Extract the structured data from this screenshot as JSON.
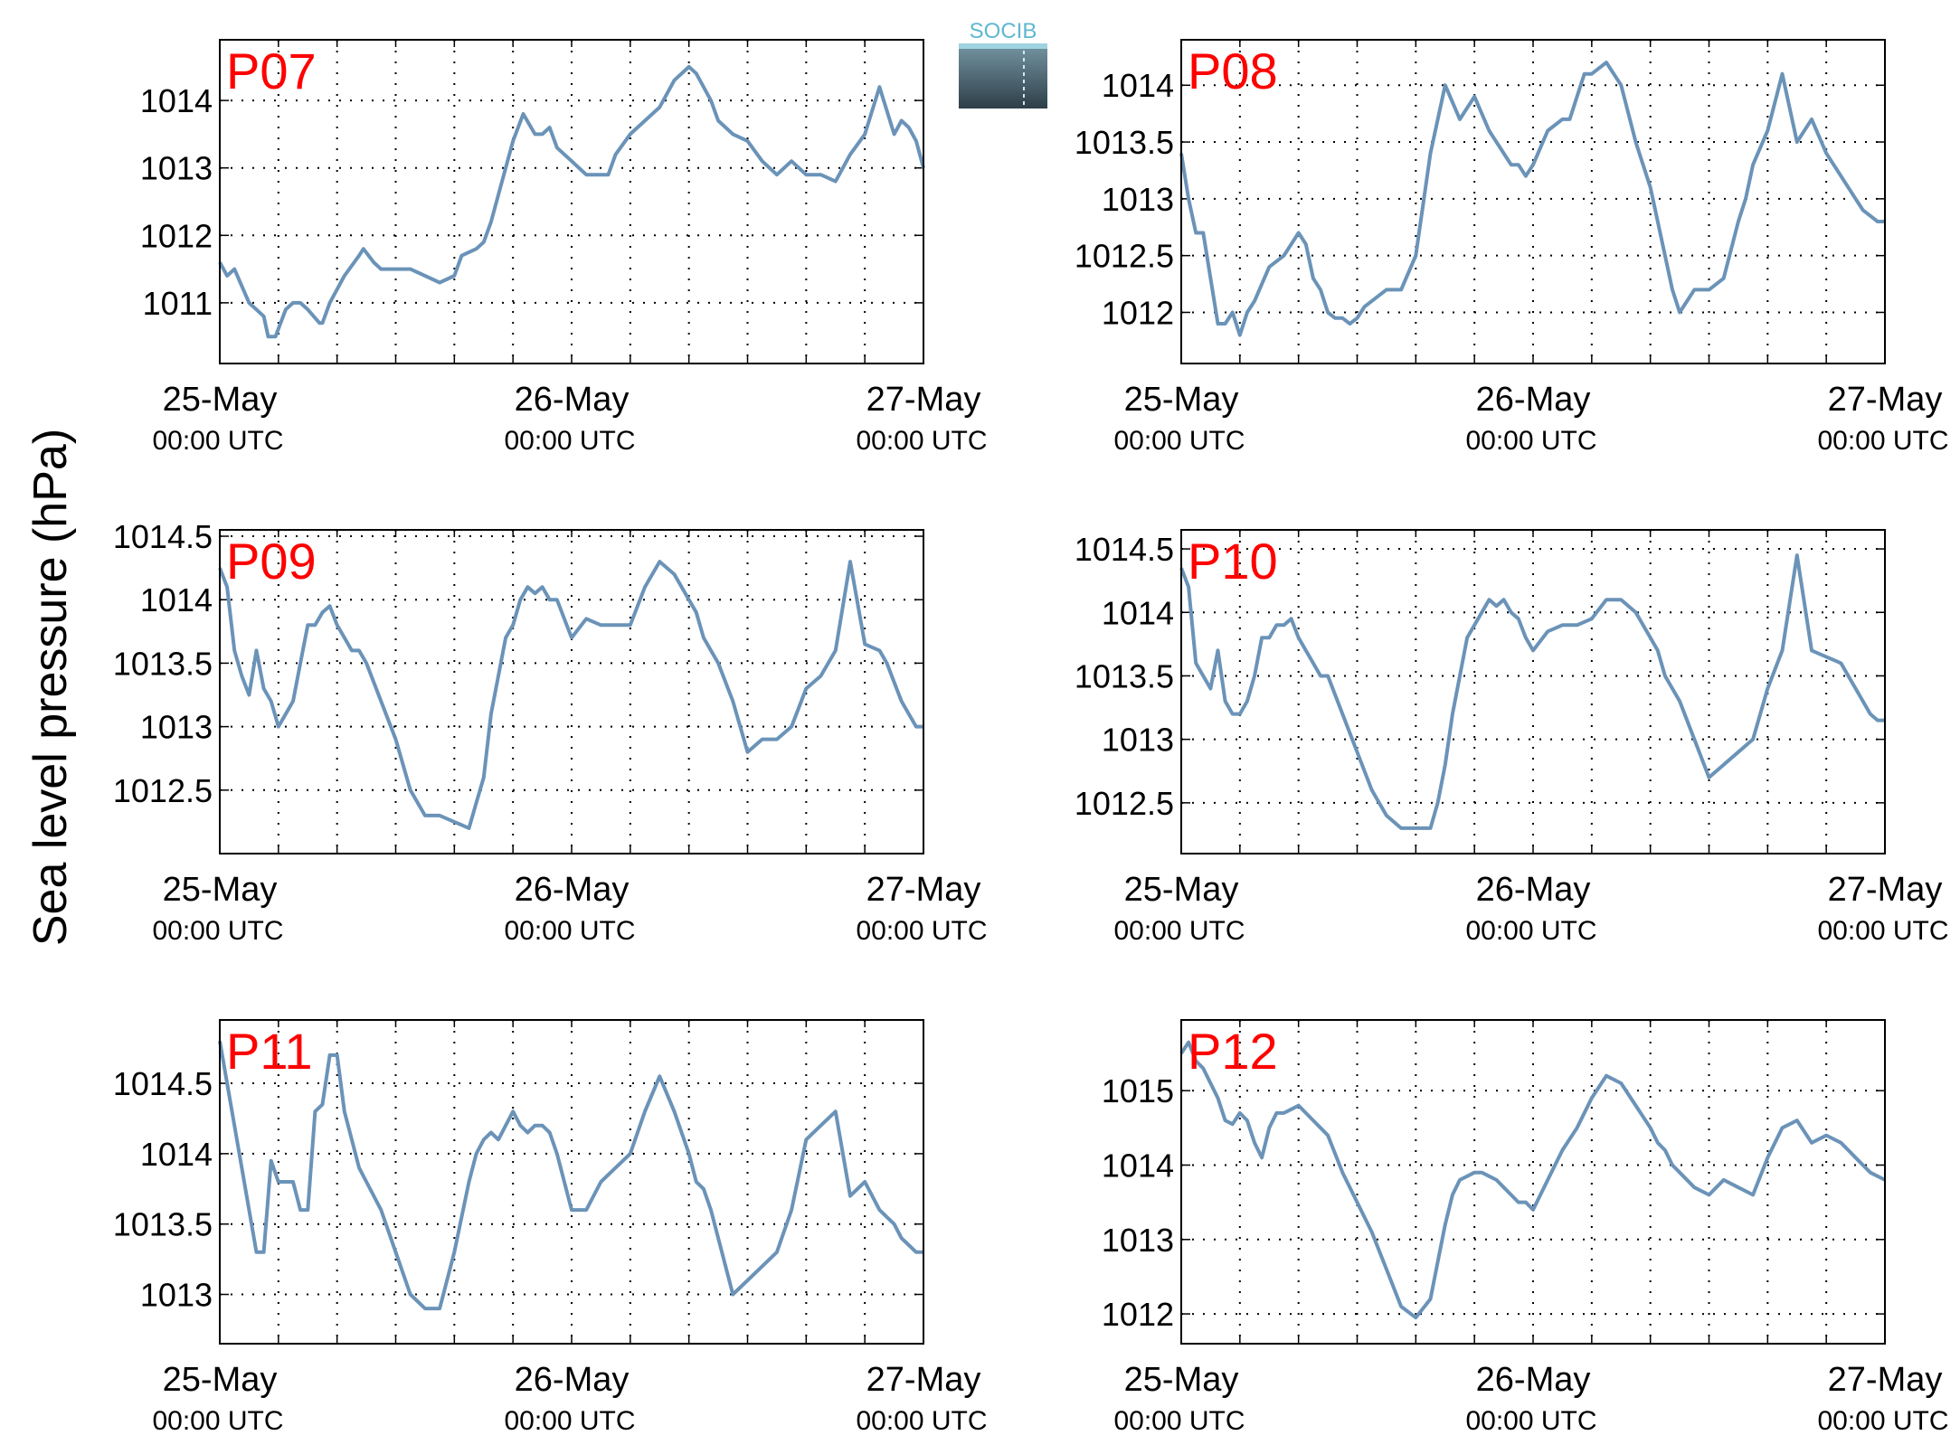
{
  "ylabel": "Sea level pressure (hPa)",
  "logo_text": "SOCIB",
  "colors": {
    "line": "#6b93b8",
    "label": "#ff0000",
    "axis": "#000000",
    "grid": "#000000"
  },
  "chart_data": [
    {
      "type": "line",
      "title": "P07",
      "ylim": [
        1010.1,
        1014.9
      ],
      "xlim": [
        0,
        48
      ],
      "yticks": [
        1011,
        1012,
        1013,
        1014
      ],
      "ytick_labels": [
        "1011",
        "1012",
        "1013",
        "1014"
      ],
      "xticks": [
        0,
        24,
        48
      ],
      "xtick_labels": [
        "25-May",
        "26-May",
        "27-May"
      ],
      "xtick_sublabel": "00:00 UTC",
      "grid": true,
      "series": [
        {
          "x": [
            0,
            0.5,
            1,
            2,
            3,
            3.3,
            3.8,
            4.5,
            5,
            5.5,
            6,
            6.8,
            7,
            7.5,
            8.5,
            9.5,
            9.8,
            10.5,
            11,
            12,
            13,
            14,
            15,
            16,
            16.5,
            17.5,
            18,
            18.5,
            19,
            19.5,
            20,
            20.7,
            21.5,
            22,
            22.5,
            23,
            24,
            25,
            26,
            26.5,
            27,
            28,
            29,
            30,
            31,
            32,
            32.5,
            33,
            33.5,
            34,
            35,
            36,
            37,
            37.5,
            38,
            38.5,
            39,
            39.5,
            40,
            41,
            42,
            43,
            44,
            45,
            46,
            46.5,
            47,
            47.5,
            48
          ],
          "y": [
            1011.6,
            1011.4,
            1011.5,
            1011.0,
            1010.8,
            1010.5,
            1010.5,
            1010.9,
            1011.0,
            1011.0,
            1010.9,
            1010.7,
            1010.7,
            1011.0,
            1011.4,
            1011.7,
            1011.8,
            1011.6,
            1011.5,
            1011.5,
            1011.5,
            1011.4,
            1011.3,
            1011.4,
            1011.7,
            1011.8,
            1011.9,
            1012.2,
            1012.6,
            1013.0,
            1013.4,
            1013.8,
            1013.5,
            1013.5,
            1013.6,
            1013.3,
            1013.1,
            1012.9,
            1012.9,
            1012.9,
            1013.2,
            1013.5,
            1013.7,
            1013.9,
            1014.3,
            1014.5,
            1014.4,
            1014.2,
            1014.0,
            1013.7,
            1013.5,
            1013.4,
            1013.1,
            1013.0,
            1012.9,
            1013.0,
            1013.1,
            1013.0,
            1012.9,
            1012.9,
            1012.8,
            1013.2,
            1013.5,
            1014.2,
            1013.5,
            1013.7,
            1013.6,
            1013.4,
            1013.0
          ]
        }
      ]
    },
    {
      "type": "line",
      "title": "P08",
      "ylim": [
        1011.55,
        1014.4
      ],
      "xlim": [
        0,
        48
      ],
      "yticks": [
        1012,
        1012.5,
        1013,
        1013.5,
        1014
      ],
      "ytick_labels": [
        "1012",
        "1012.5",
        "1013",
        "1013.5",
        "1014"
      ],
      "xticks": [
        0,
        24,
        48
      ],
      "xtick_labels": [
        "25-May",
        "26-May",
        "27-May"
      ],
      "xtick_sublabel": "00:00 UTC",
      "grid": true,
      "series": [
        {
          "x": [
            0,
            0.5,
            1,
            1.5,
            2,
            2.5,
            3,
            3.5,
            4,
            4.5,
            5,
            6,
            7,
            8,
            8.5,
            9,
            9.5,
            10,
            10.5,
            11,
            11.5,
            12,
            12.5,
            13,
            14,
            15,
            16,
            17,
            18,
            19,
            20,
            21,
            21.5,
            22,
            22.5,
            23,
            23.5,
            24,
            25,
            26,
            26.5,
            27,
            27.5,
            28,
            29,
            30,
            31,
            31.5,
            32,
            33,
            33.5,
            34,
            35,
            36,
            37,
            38,
            38.5,
            39,
            40,
            41,
            42,
            43,
            44,
            45,
            45.5,
            46,
            46.5,
            47,
            47.5,
            48
          ],
          "y": [
            1013.4,
            1013.0,
            1012.7,
            1012.7,
            1012.3,
            1011.9,
            1011.9,
            1012.0,
            1011.8,
            1012.0,
            1012.1,
            1012.4,
            1012.5,
            1012.7,
            1012.6,
            1012.3,
            1012.2,
            1012.0,
            1011.95,
            1011.95,
            1011.9,
            1011.95,
            1012.05,
            1012.1,
            1012.2,
            1012.2,
            1012.5,
            1013.4,
            1014.0,
            1013.7,
            1013.9,
            1013.6,
            1013.5,
            1013.4,
            1013.3,
            1013.3,
            1013.2,
            1013.3,
            1013.6,
            1013.7,
            1013.7,
            1013.9,
            1014.1,
            1014.1,
            1014.2,
            1014.0,
            1013.5,
            1013.3,
            1013.1,
            1012.5,
            1012.2,
            1012.0,
            1012.2,
            1012.2,
            1012.3,
            1012.8,
            1013.0,
            1013.3,
            1013.6,
            1014.1,
            1013.5,
            1013.7,
            1013.4,
            1013.2,
            1013.1,
            1013.0,
            1012.9,
            1012.85,
            1012.8,
            1012.8
          ]
        }
      ]
    },
    {
      "type": "line",
      "title": "P09",
      "ylim": [
        1012.0,
        1014.55
      ],
      "xlim": [
        0,
        48
      ],
      "yticks": [
        1012.5,
        1013,
        1013.5,
        1014,
        1014.5
      ],
      "ytick_labels": [
        "1012.5",
        "1013",
        "1013.5",
        "1014",
        "1014.5"
      ],
      "xticks": [
        0,
        24,
        48
      ],
      "xtick_labels": [
        "25-May",
        "26-May",
        "27-May"
      ],
      "xtick_sublabel": "00:00 UTC",
      "grid": true,
      "series": [
        {
          "x": [
            0,
            0.5,
            1,
            1.5,
            2,
            2.5,
            3,
            3.5,
            4,
            4.5,
            5,
            5.5,
            6,
            6.5,
            7,
            7.5,
            8,
            8.5,
            9,
            9.5,
            10,
            11,
            12,
            13,
            14,
            15,
            16,
            17,
            17.5,
            18,
            18.5,
            19,
            19.5,
            20,
            20.5,
            21,
            21.5,
            22,
            22.5,
            23,
            23.5,
            24,
            25,
            26,
            27,
            28,
            29,
            30,
            31,
            32,
            32.5,
            33,
            33.5,
            34,
            35,
            36,
            37,
            38,
            39,
            40,
            41,
            42,
            43,
            44,
            45,
            45.5,
            46,
            46.5,
            47,
            47.5,
            48
          ],
          "y": [
            1014.25,
            1014.1,
            1013.6,
            1013.4,
            1013.25,
            1013.6,
            1013.3,
            1013.2,
            1013.0,
            1013.1,
            1013.2,
            1013.5,
            1013.8,
            1013.8,
            1013.9,
            1013.95,
            1013.8,
            1013.7,
            1013.6,
            1013.6,
            1013.5,
            1013.2,
            1012.9,
            1012.5,
            1012.3,
            1012.3,
            1012.25,
            1012.2,
            1012.4,
            1012.6,
            1013.1,
            1013.4,
            1013.7,
            1013.8,
            1014.0,
            1014.1,
            1014.05,
            1014.1,
            1014.0,
            1014.0,
            1013.85,
            1013.7,
            1013.85,
            1013.8,
            1013.8,
            1013.8,
            1014.1,
            1014.3,
            1014.2,
            1014.0,
            1013.9,
            1013.7,
            1013.6,
            1013.5,
            1013.2,
            1012.8,
            1012.9,
            1012.9,
            1013.0,
            1013.3,
            1013.4,
            1013.6,
            1014.3,
            1013.65,
            1013.6,
            1013.5,
            1013.35,
            1013.2,
            1013.1,
            1013.0,
            1013.0
          ]
        }
      ]
    },
    {
      "type": "line",
      "title": "P10",
      "ylim": [
        1012.1,
        1014.65
      ],
      "xlim": [
        0,
        48
      ],
      "yticks": [
        1012.5,
        1013,
        1013.5,
        1014,
        1014.5
      ],
      "ytick_labels": [
        "1012.5",
        "1013",
        "1013.5",
        "1014",
        "1014.5"
      ],
      "xticks": [
        0,
        24,
        48
      ],
      "xtick_labels": [
        "25-May",
        "26-May",
        "27-May"
      ],
      "xtick_sublabel": "00:00 UTC",
      "grid": true,
      "series": [
        {
          "x": [
            0,
            0.5,
            1,
            1.5,
            2,
            2.5,
            3,
            3.5,
            4,
            4.5,
            5,
            5.5,
            6,
            6.5,
            7,
            7.5,
            8,
            8.5,
            9,
            9.5,
            10,
            11,
            12,
            13,
            14,
            15,
            16,
            17,
            17.5,
            18,
            18.5,
            19,
            19.5,
            20,
            20.5,
            21,
            21.5,
            22,
            22.5,
            23,
            23.5,
            24,
            25,
            26,
            27,
            28,
            29,
            30,
            31,
            32,
            32.5,
            33,
            33.5,
            34,
            35,
            36,
            37,
            38,
            39,
            40,
            41,
            42,
            43,
            44,
            45,
            45.5,
            46,
            46.5,
            47,
            47.5,
            48
          ],
          "y": [
            1014.35,
            1014.2,
            1013.6,
            1013.5,
            1013.4,
            1013.7,
            1013.3,
            1013.2,
            1013.2,
            1013.3,
            1013.5,
            1013.8,
            1013.8,
            1013.9,
            1013.9,
            1013.95,
            1013.8,
            1013.7,
            1013.6,
            1013.5,
            1013.5,
            1013.2,
            1012.9,
            1012.6,
            1012.4,
            1012.3,
            1012.3,
            1012.3,
            1012.5,
            1012.8,
            1013.2,
            1013.5,
            1013.8,
            1013.9,
            1014.0,
            1014.1,
            1014.05,
            1014.1,
            1014.0,
            1013.95,
            1013.8,
            1013.7,
            1013.85,
            1013.9,
            1013.9,
            1013.95,
            1014.1,
            1014.1,
            1014.0,
            1013.8,
            1013.7,
            1013.5,
            1013.4,
            1013.3,
            1013.0,
            1012.7,
            1012.8,
            1012.9,
            1013.0,
            1013.4,
            1013.7,
            1014.45,
            1013.7,
            1013.65,
            1013.6,
            1013.5,
            1013.4,
            1013.3,
            1013.2,
            1013.15,
            1013.15
          ]
        }
      ]
    },
    {
      "type": "line",
      "title": "P11",
      "ylim": [
        1012.65,
        1014.95
      ],
      "xlim": [
        0,
        48
      ],
      "yticks": [
        1013,
        1013.5,
        1014,
        1014.5
      ],
      "ytick_labels": [
        "1013",
        "1013.5",
        "1014",
        "1014.5"
      ],
      "xticks": [
        0,
        24,
        48
      ],
      "xtick_labels": [
        "25-May",
        "26-May",
        "27-May"
      ],
      "xtick_sublabel": "00:00 UTC",
      "grid": true,
      "series": [
        {
          "x": [
            0,
            0.5,
            1,
            1.5,
            2,
            2.5,
            3,
            3.5,
            4,
            4.5,
            5,
            5.5,
            6,
            6.5,
            7,
            7.5,
            8,
            8.5,
            9,
            9.5,
            10,
            11,
            12,
            13,
            14,
            15,
            16,
            17,
            17.5,
            18,
            18.5,
            19,
            19.5,
            20,
            20.5,
            21,
            21.5,
            22,
            22.5,
            23,
            23.5,
            24,
            25,
            26,
            27,
            28,
            29,
            30,
            31,
            32,
            32.5,
            33,
            33.5,
            34,
            35,
            36,
            37,
            38,
            39,
            40,
            41,
            42,
            43,
            44,
            45,
            45.5,
            46,
            46.5,
            47,
            47.5,
            48
          ],
          "y": [
            1014.8,
            1014.5,
            1014.2,
            1013.9,
            1013.6,
            1013.3,
            1013.3,
            1013.95,
            1013.8,
            1013.8,
            1013.8,
            1013.6,
            1013.6,
            1014.3,
            1014.35,
            1014.7,
            1014.7,
            1014.3,
            1014.1,
            1013.9,
            1013.8,
            1013.6,
            1013.3,
            1013.0,
            1012.9,
            1012.9,
            1013.3,
            1013.8,
            1014.0,
            1014.1,
            1014.15,
            1014.1,
            1014.2,
            1014.3,
            1014.2,
            1014.15,
            1014.2,
            1014.2,
            1014.15,
            1014.0,
            1013.8,
            1013.6,
            1013.6,
            1013.8,
            1013.9,
            1014.0,
            1014.3,
            1014.55,
            1014.3,
            1014.0,
            1013.8,
            1013.75,
            1013.6,
            1013.4,
            1013.0,
            1013.1,
            1013.2,
            1013.3,
            1013.6,
            1014.1,
            1014.2,
            1014.3,
            1013.7,
            1013.8,
            1013.6,
            1013.55,
            1013.5,
            1013.4,
            1013.35,
            1013.3,
            1013.3
          ]
        }
      ]
    },
    {
      "type": "line",
      "title": "P12",
      "ylim": [
        1011.6,
        1015.95
      ],
      "xlim": [
        0,
        48
      ],
      "yticks": [
        1012,
        1013,
        1014,
        1015
      ],
      "ytick_labels": [
        "1012",
        "1013",
        "1014",
        "1015"
      ],
      "xticks": [
        0,
        24,
        48
      ],
      "xtick_labels": [
        "25-May",
        "26-May",
        "27-May"
      ],
      "xtick_sublabel": "00:00 UTC",
      "grid": true,
      "series": [
        {
          "x": [
            0,
            0.5,
            1,
            1.5,
            2,
            2.5,
            3,
            3.5,
            4,
            4.5,
            5,
            5.5,
            6,
            6.5,
            7,
            7.5,
            8,
            8.5,
            9,
            9.5,
            10,
            11,
            12,
            13,
            14,
            15,
            16,
            17,
            17.5,
            18,
            18.5,
            19,
            19.5,
            20,
            20.5,
            21,
            21.5,
            22,
            22.5,
            23,
            23.5,
            24,
            25,
            26,
            27,
            28,
            29,
            30,
            31,
            32,
            32.5,
            33,
            33.5,
            34,
            35,
            36,
            37,
            38,
            39,
            40,
            41,
            42,
            43,
            44,
            45,
            45.5,
            46,
            46.5,
            47,
            47.5,
            48
          ],
          "y": [
            1015.5,
            1015.65,
            1015.4,
            1015.3,
            1015.1,
            1014.9,
            1014.6,
            1014.55,
            1014.7,
            1014.6,
            1014.3,
            1014.1,
            1014.5,
            1014.7,
            1014.7,
            1014.75,
            1014.8,
            1014.7,
            1014.6,
            1014.5,
            1014.4,
            1013.9,
            1013.5,
            1013.1,
            1012.6,
            1012.1,
            1011.95,
            1012.2,
            1012.7,
            1013.2,
            1013.6,
            1013.8,
            1013.85,
            1013.9,
            1013.9,
            1013.85,
            1013.8,
            1013.7,
            1013.6,
            1013.5,
            1013.5,
            1013.4,
            1013.8,
            1014.2,
            1014.5,
            1014.9,
            1015.2,
            1015.1,
            1014.8,
            1014.5,
            1014.3,
            1014.2,
            1014.0,
            1013.9,
            1013.7,
            1013.6,
            1013.8,
            1013.7,
            1013.6,
            1014.1,
            1014.5,
            1014.6,
            1014.3,
            1014.4,
            1014.3,
            1014.2,
            1014.1,
            1014.0,
            1013.9,
            1013.85,
            1013.8
          ]
        }
      ]
    }
  ]
}
